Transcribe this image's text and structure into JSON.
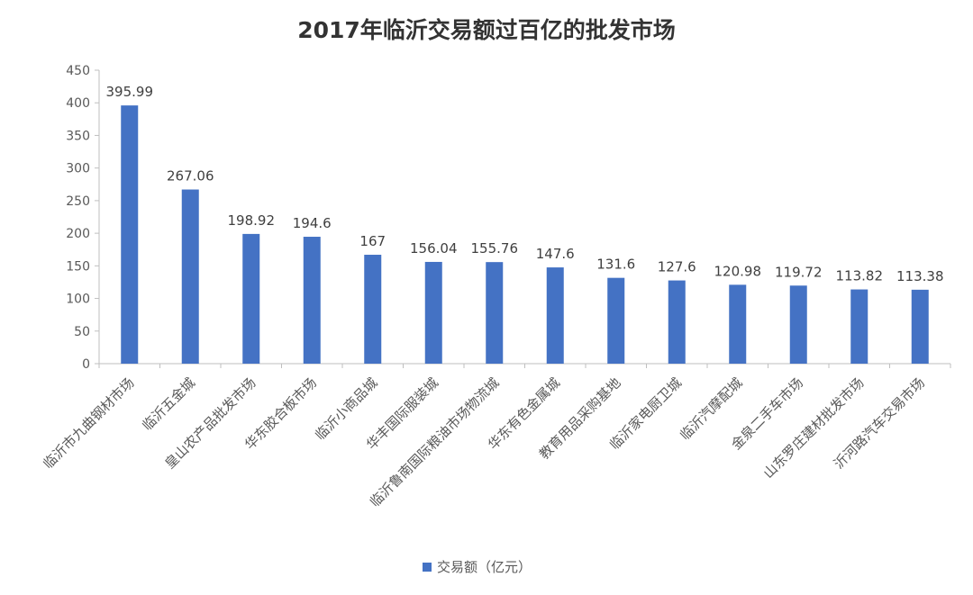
{
  "chart_data": {
    "type": "bar",
    "title": "2017年临沂交易额过百亿的批发市场",
    "xlabel": "",
    "ylabel": "",
    "ylim": [
      0,
      450
    ],
    "yticks": [
      0,
      50,
      100,
      150,
      200,
      250,
      300,
      350,
      400,
      450
    ],
    "grid": false,
    "legend_position": "bottom",
    "categories": [
      "临沂市九曲钢材市场",
      "临沂五金城",
      "皇山农产品批发市场",
      "华东胶合板市场",
      "临沂小商品城",
      "华丰国际服装城",
      "临沂鲁南国际粮油市场物流城",
      "华东有色金属城",
      "教育用品采购基地",
      "临沂家电厨卫城",
      "临沂汽摩配城",
      "金泉二手车市场",
      "山东罗庄建材批发市场",
      "沂河路汽车交易市场"
    ],
    "series": [
      {
        "name": "交易额（亿元）",
        "color": "#4472C4",
        "values": [
          395.99,
          267.06,
          198.92,
          194.6,
          167,
          156.04,
          155.76,
          147.6,
          131.6,
          127.6,
          120.98,
          119.72,
          113.82,
          113.38
        ],
        "labels": [
          "395.99",
          "267.06",
          "198.92",
          "194.6",
          "167",
          "156.04",
          "155.76",
          "147.6",
          "131.6",
          "127.6",
          "120.98",
          "119.72",
          "113.82",
          "113.38"
        ]
      }
    ]
  }
}
